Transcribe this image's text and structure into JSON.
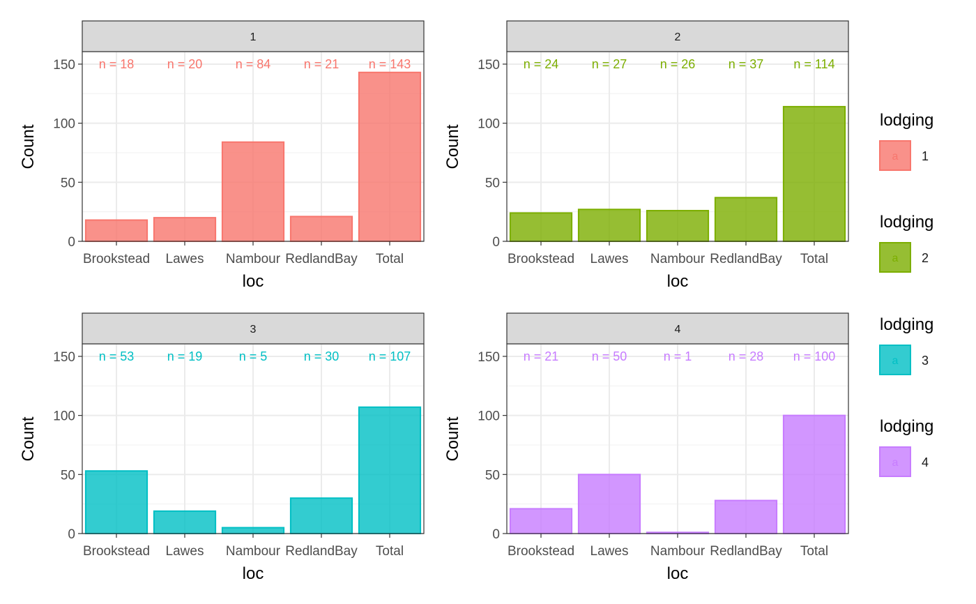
{
  "chart_data": {
    "type": "bar",
    "x_label": "loc",
    "y_label": "Count",
    "categories": [
      "Brookstead",
      "Lawes",
      "Nambour",
      "RedlandBay",
      "Total"
    ],
    "ylim": [
      0,
      160
    ],
    "y_ticks": [
      0,
      50,
      100,
      150
    ],
    "grid": true,
    "facets": [
      {
        "strip": "1",
        "lodging": "1",
        "color": "#F8766D",
        "values": [
          18,
          20,
          84,
          21,
          143
        ],
        "labels": [
          "n = 18",
          "n = 20",
          "n = 84",
          "n = 21",
          "n = 143"
        ]
      },
      {
        "strip": "2",
        "lodging": "2",
        "color": "#7CAE00",
        "values": [
          24,
          27,
          26,
          37,
          114
        ],
        "labels": [
          "n = 24",
          "n = 27",
          "n = 26",
          "n = 37",
          "n = 114"
        ]
      },
      {
        "strip": "3",
        "lodging": "3",
        "color": "#00BFC4",
        "values": [
          53,
          19,
          5,
          30,
          107
        ],
        "labels": [
          "n = 53",
          "n = 19",
          "n = 5",
          "n = 30",
          "n = 107"
        ]
      },
      {
        "strip": "4",
        "lodging": "4",
        "color": "#C77CFF",
        "values": [
          21,
          50,
          1,
          28,
          100
        ],
        "labels": [
          "n = 21",
          "n = 50",
          "n = 1",
          "n = 28",
          "n = 100"
        ]
      }
    ],
    "legend": {
      "position": "right",
      "key_glyph": "a",
      "groups": [
        {
          "title": "lodging",
          "label": "1",
          "color": "#F8766D"
        },
        {
          "title": "lodging",
          "label": "2",
          "color": "#7CAE00"
        },
        {
          "title": "lodging",
          "label": "3",
          "color": "#00BFC4"
        },
        {
          "title": "lodging",
          "label": "4",
          "color": "#C77CFF"
        }
      ]
    }
  }
}
